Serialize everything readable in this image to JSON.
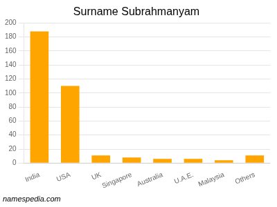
{
  "chart_data": {
    "type": "bar",
    "title": "Surname Subrahmanyam",
    "categories": [
      "India",
      "USA",
      "UK",
      "Singapore",
      "Australia",
      "U.A.E.",
      "Malaysia",
      "Others"
    ],
    "values": [
      188,
      110,
      11,
      8,
      6,
      6,
      4,
      11
    ],
    "color": "#FFA500",
    "ylim": [
      0,
      200
    ],
    "yticks": [
      0,
      20,
      40,
      60,
      80,
      100,
      120,
      140,
      160,
      180,
      200
    ],
    "grid": true,
    "annotations": [
      "namespedia.com"
    ]
  }
}
